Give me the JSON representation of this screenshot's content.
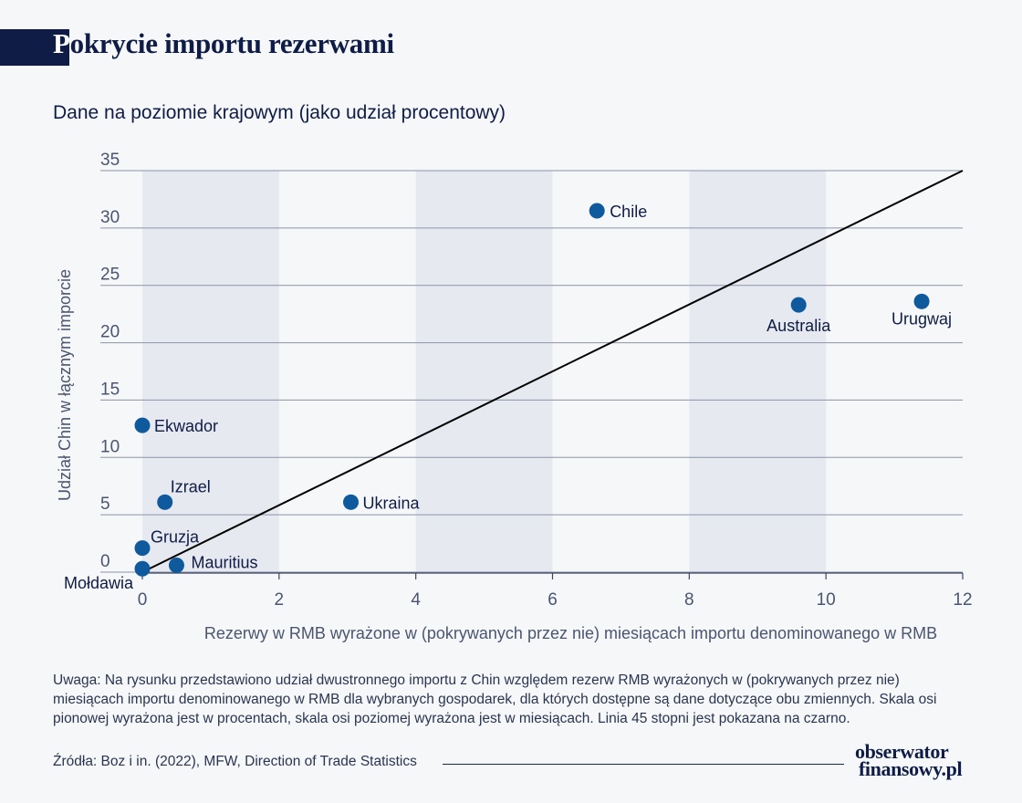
{
  "header": {
    "title_first": "P",
    "title_rest": "okrycie importu rezerwami",
    "subtitle": "Dane na poziomie krajowym (jako udział procentowy)"
  },
  "chart_data": {
    "type": "scatter",
    "title": "Pokrycie importu rezerwami",
    "subtitle": "Dane na poziomie krajowym (jako udział procentowy)",
    "xlabel": "Rezerwy w RMB wyrażone w (pokrywanych przez nie) miesiącach importu denominowanego w RMB",
    "ylabel": "Udział Chin w łącznym imporcie",
    "xlim": [
      0,
      12
    ],
    "ylim": [
      0,
      35
    ],
    "x_ticks": [
      0,
      2,
      4,
      6,
      8,
      10,
      12
    ],
    "y_ticks": [
      0,
      5,
      10,
      15,
      20,
      25,
      30,
      35
    ],
    "grid": "horizontal lines; alternating vertical shaded bands 0–2, 4–6, 8–10",
    "reference_line": {
      "label": "Linia 45 stopni",
      "from": [
        0,
        0
      ],
      "to": [
        12,
        35
      ],
      "color": "#000000"
    },
    "point_color": "#0e5a9c",
    "points": [
      {
        "label": "Chile",
        "x": 6.65,
        "y": 31.5
      },
      {
        "label": "Australia",
        "x": 9.6,
        "y": 23.3
      },
      {
        "label": "Urugwaj",
        "x": 11.4,
        "y": 23.6
      },
      {
        "label": "Ekwador",
        "x": 0.0,
        "y": 12.8
      },
      {
        "label": "Izrael",
        "x": 0.33,
        "y": 6.1
      },
      {
        "label": "Ukraina",
        "x": 3.05,
        "y": 6.1
      },
      {
        "label": "Gruzja",
        "x": 0.0,
        "y": 2.1
      },
      {
        "label": "Mauritius",
        "x": 0.5,
        "y": 0.6
      },
      {
        "label": "Mołdawia",
        "x": 0.0,
        "y": 0.3
      }
    ]
  },
  "footer": {
    "note": "Uwaga: Na rysunku przedstawiono udział dwustronnego importu z Chin względem rezerw RMB wyrażonych w (pokrywanych przez nie) miesiącach importu denominowanego w RMB dla wybranych gospodarek, dla których dostępne są dane dotyczące obu zmiennych. Skala osi pionowej wyrażona jest w procentach, skala osi poziomej wyrażona jest w miesiącach. Linia 45 stopni jest pokazana na czarno.",
    "source": "Źródła: Boz i in. (2022), MFW, Direction of Trade Statistics",
    "brand_line1": "obserwator",
    "brand_line2": "finansowy.pl"
  }
}
